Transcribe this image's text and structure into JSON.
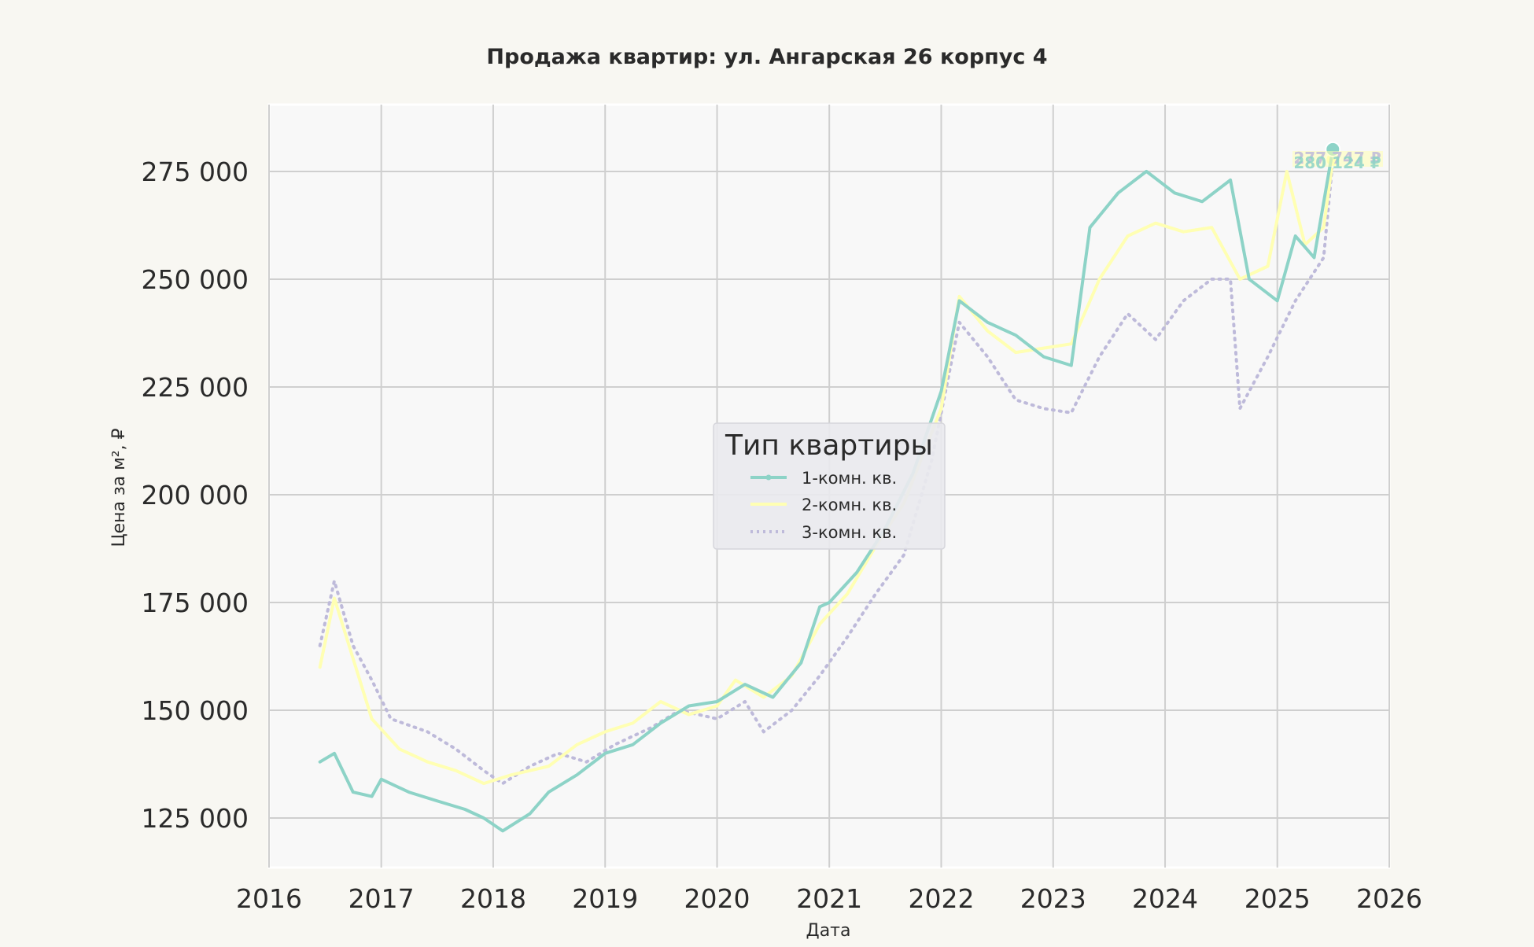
{
  "chart_data": {
    "type": "line",
    "title": "Продажа квартир: ул. Ангарская 26 корпус 4",
    "xlabel": "Дата",
    "ylabel": "Цена за м², ₽",
    "xlim": [
      "2016-01-01",
      "2026-01-01"
    ],
    "ylim": [
      113500,
      290500
    ],
    "x_ticks": [
      "2016",
      "2017",
      "2018",
      "2019",
      "2020",
      "2021",
      "2022",
      "2023",
      "2024",
      "2025",
      "2026"
    ],
    "y_ticks": [
      125000,
      150000,
      175000,
      200000,
      225000,
      250000,
      275000
    ],
    "y_tick_labels": [
      "125 000",
      "150 000",
      "175 000",
      "200 000",
      "225 000",
      "250 000",
      "275 000"
    ],
    "grid": true,
    "legend": {
      "title": "Тип квартиры",
      "placement": "center",
      "entries": [
        "1-комн. кв.",
        "2-комн. кв.",
        "3-комн. кв."
      ]
    },
    "end_labels": [
      "277 747 ₽",
      "280 124 ₽"
    ],
    "series": [
      {
        "name": "1-комн. кв.",
        "color": "#8dd3c7",
        "style": "solid-marker",
        "points": [
          [
            "2016-06-15",
            138000
          ],
          [
            "2016-08-01",
            140000
          ],
          [
            "2016-10-01",
            131000
          ],
          [
            "2016-12-01",
            130000
          ],
          [
            "2017-01-01",
            134000
          ],
          [
            "2017-04-01",
            131000
          ],
          [
            "2017-07-01",
            129000
          ],
          [
            "2017-10-01",
            127000
          ],
          [
            "2017-12-01",
            125000
          ],
          [
            "2018-02-01",
            122000
          ],
          [
            "2018-05-01",
            126000
          ],
          [
            "2018-07-01",
            131000
          ],
          [
            "2018-10-01",
            135000
          ],
          [
            "2019-01-01",
            140000
          ],
          [
            "2019-04-01",
            142000
          ],
          [
            "2019-07-01",
            147000
          ],
          [
            "2019-10-01",
            151000
          ],
          [
            "2020-01-01",
            152000
          ],
          [
            "2020-04-01",
            156000
          ],
          [
            "2020-07-01",
            153000
          ],
          [
            "2020-10-01",
            161000
          ],
          [
            "2020-12-01",
            174000
          ],
          [
            "2021-01-01",
            175000
          ],
          [
            "2021-04-01",
            182000
          ],
          [
            "2021-07-01",
            192000
          ],
          [
            "2021-10-01",
            205000
          ],
          [
            "2022-01-01",
            224000
          ],
          [
            "2022-03-01",
            245000
          ],
          [
            "2022-06-01",
            240000
          ],
          [
            "2022-09-01",
            237000
          ],
          [
            "2022-12-01",
            232000
          ],
          [
            "2023-03-01",
            230000
          ],
          [
            "2023-05-01",
            262000
          ],
          [
            "2023-08-01",
            270000
          ],
          [
            "2023-11-01",
            275000
          ],
          [
            "2024-02-01",
            270000
          ],
          [
            "2024-05-01",
            268000
          ],
          [
            "2024-08-01",
            273000
          ],
          [
            "2024-10-01",
            250000
          ],
          [
            "2025-01-01",
            245000
          ],
          [
            "2025-03-01",
            260000
          ],
          [
            "2025-05-01",
            255000
          ],
          [
            "2025-07-01",
            280124
          ]
        ]
      },
      {
        "name": "2-комн. кв.",
        "color": "#ffffb3",
        "style": "solid",
        "points": [
          [
            "2016-06-15",
            160000
          ],
          [
            "2016-08-01",
            176000
          ],
          [
            "2016-10-01",
            162000
          ],
          [
            "2016-12-01",
            148000
          ],
          [
            "2017-03-01",
            141000
          ],
          [
            "2017-06-01",
            138000
          ],
          [
            "2017-09-01",
            136000
          ],
          [
            "2017-12-01",
            133000
          ],
          [
            "2018-03-01",
            135000
          ],
          [
            "2018-07-01",
            137000
          ],
          [
            "2018-10-01",
            142000
          ],
          [
            "2019-01-01",
            145000
          ],
          [
            "2019-04-01",
            147000
          ],
          [
            "2019-07-01",
            152000
          ],
          [
            "2019-10-01",
            149000
          ],
          [
            "2020-01-01",
            151000
          ],
          [
            "2020-03-01",
            157000
          ],
          [
            "2020-06-01",
            153000
          ],
          [
            "2020-09-01",
            158000
          ],
          [
            "2020-12-01",
            170000
          ],
          [
            "2021-03-01",
            177000
          ],
          [
            "2021-06-01",
            188000
          ],
          [
            "2021-09-01",
            198000
          ],
          [
            "2022-01-01",
            220000
          ],
          [
            "2022-03-01",
            246000
          ],
          [
            "2022-06-01",
            238000
          ],
          [
            "2022-09-01",
            233000
          ],
          [
            "2022-12-01",
            234000
          ],
          [
            "2023-03-01",
            235000
          ],
          [
            "2023-06-01",
            250000
          ],
          [
            "2023-09-01",
            260000
          ],
          [
            "2023-12-01",
            263000
          ],
          [
            "2024-03-01",
            261000
          ],
          [
            "2024-06-01",
            262000
          ],
          [
            "2024-09-01",
            250000
          ],
          [
            "2024-12-01",
            253000
          ],
          [
            "2025-02-01",
            275000
          ],
          [
            "2025-04-01",
            258000
          ],
          [
            "2025-06-01",
            262000
          ],
          [
            "2025-07-01",
            277747
          ]
        ]
      },
      {
        "name": "3-комн. кв.",
        "color": "#bebada",
        "style": "dotted",
        "points": [
          [
            "2016-06-15",
            165000
          ],
          [
            "2016-08-01",
            180000
          ],
          [
            "2016-10-01",
            165000
          ],
          [
            "2016-12-01",
            157000
          ],
          [
            "2017-02-01",
            148000
          ],
          [
            "2017-06-01",
            145000
          ],
          [
            "2017-09-01",
            141000
          ],
          [
            "2017-12-01",
            136000
          ],
          [
            "2018-02-01",
            133000
          ],
          [
            "2018-05-01",
            137000
          ],
          [
            "2018-08-01",
            140000
          ],
          [
            "2018-11-01",
            138000
          ],
          [
            "2019-02-01",
            142000
          ],
          [
            "2019-06-01",
            146000
          ],
          [
            "2019-09-01",
            150000
          ],
          [
            "2020-01-01",
            148000
          ],
          [
            "2020-04-01",
            152000
          ],
          [
            "2020-06-01",
            145000
          ],
          [
            "2020-09-01",
            150000
          ],
          [
            "2020-12-01",
            158000
          ],
          [
            "2021-03-01",
            167000
          ],
          [
            "2021-06-01",
            177000
          ],
          [
            "2021-09-01",
            186000
          ],
          [
            "2021-12-01",
            208000
          ],
          [
            "2022-03-01",
            240000
          ],
          [
            "2022-06-01",
            232000
          ],
          [
            "2022-09-01",
            222000
          ],
          [
            "2022-12-01",
            220000
          ],
          [
            "2023-03-01",
            219000
          ],
          [
            "2023-06-01",
            232000
          ],
          [
            "2023-09-01",
            242000
          ],
          [
            "2023-12-01",
            236000
          ],
          [
            "2024-03-01",
            245000
          ],
          [
            "2024-06-01",
            250000
          ],
          [
            "2024-08-01",
            250000
          ],
          [
            "2024-09-01",
            220000
          ],
          [
            "2024-12-01",
            232000
          ],
          [
            "2025-03-01",
            245000
          ],
          [
            "2025-06-01",
            255000
          ],
          [
            "2025-07-01",
            277747
          ]
        ]
      }
    ]
  }
}
